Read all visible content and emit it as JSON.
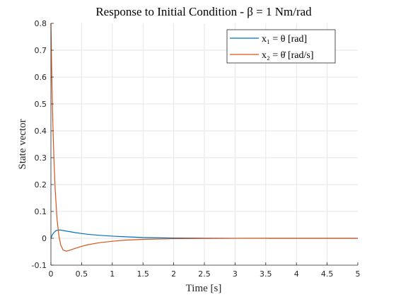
{
  "chart_data": {
    "type": "line",
    "title": "Response to Initial Condition - β = 1 Nm/rad",
    "xlabel": "Time [s]",
    "ylabel": "State vector",
    "xlim": [
      0,
      5
    ],
    "ylim": [
      -0.1,
      0.8
    ],
    "xticks": [
      0,
      0.5,
      1,
      1.5,
      2,
      2.5,
      3,
      3.5,
      4,
      4.5,
      5
    ],
    "yticks": [
      -0.1,
      0,
      0.1,
      0.2,
      0.3,
      0.4,
      0.5,
      0.6,
      0.7,
      0.8
    ],
    "grid": true,
    "legend_position": "top-right",
    "series": [
      {
        "name": "x₁ = θ [rad]",
        "color": "#0072BD",
        "x": [
          0,
          0.02,
          0.05,
          0.08,
          0.1,
          0.15,
          0.2,
          0.3,
          0.4,
          0.5,
          0.6,
          0.8,
          1.0,
          1.2,
          1.5,
          2.0,
          2.5,
          3.0,
          3.5,
          4.0,
          4.5,
          5.0
        ],
        "y": [
          0,
          0.012,
          0.022,
          0.028,
          0.03,
          0.031,
          0.029,
          0.025,
          0.021,
          0.018,
          0.015,
          0.011,
          0.008,
          0.006,
          0.003,
          0.001,
          0.0005,
          0.0002,
          0.0001,
          0,
          0,
          0
        ]
      },
      {
        "name": "x₂ = θ̇ [rad/s]",
        "color": "#D95319",
        "x": [
          0,
          0.01,
          0.02,
          0.03,
          0.05,
          0.07,
          0.1,
          0.13,
          0.16,
          0.2,
          0.25,
          0.3,
          0.4,
          0.5,
          0.6,
          0.8,
          1.0,
          1.2,
          1.5,
          2.0,
          2.5,
          3.0,
          3.5,
          4.0,
          4.5,
          5.0
        ],
        "y": [
          0.8,
          0.66,
          0.54,
          0.44,
          0.29,
          0.18,
          0.07,
          0.01,
          -0.025,
          -0.044,
          -0.048,
          -0.045,
          -0.037,
          -0.03,
          -0.024,
          -0.016,
          -0.011,
          -0.007,
          -0.004,
          -0.0015,
          -0.0006,
          -0.0002,
          0,
          0,
          0,
          0
        ]
      }
    ]
  }
}
